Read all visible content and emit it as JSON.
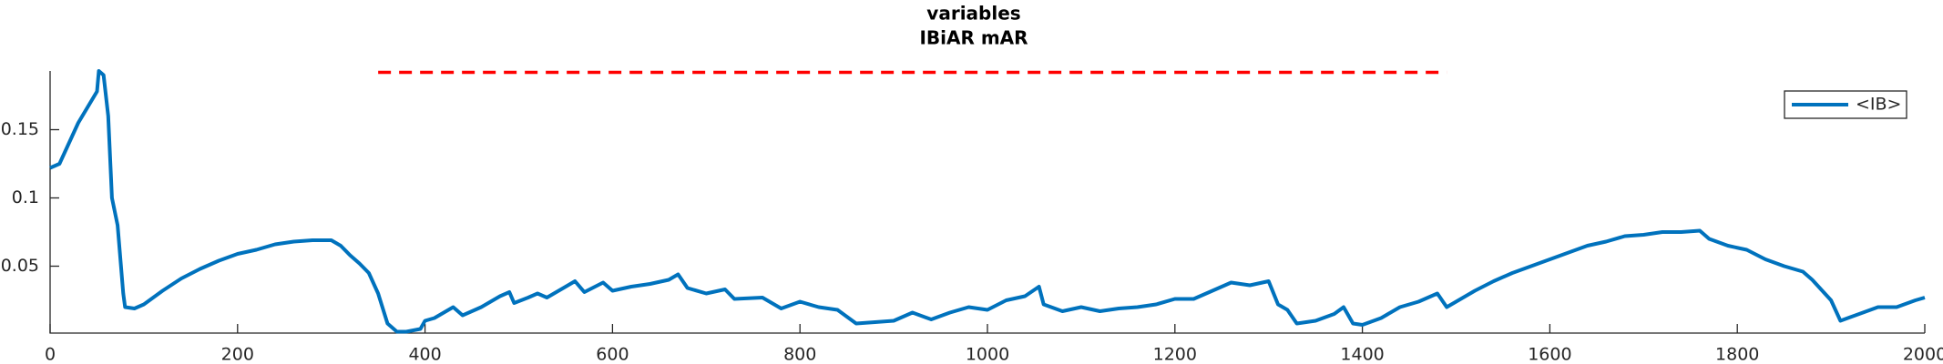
{
  "chart_data": {
    "type": "line",
    "title": "variables",
    "subtitle": "IBiAR mAR",
    "xlim": [
      0,
      2000
    ],
    "xticks": [
      0,
      200,
      400,
      600,
      800,
      1000,
      1200,
      1400,
      1600,
      1800,
      2000
    ],
    "ylim": [
      0.001,
      0.193
    ],
    "yticks": [
      0.05,
      0.1,
      0.15
    ],
    "legend": "northeast",
    "x": [
      0,
      10,
      30,
      50,
      52,
      57,
      62,
      66,
      72,
      78,
      80,
      90,
      100,
      120,
      140,
      160,
      180,
      200,
      220,
      240,
      260,
      280,
      300,
      310,
      320,
      330,
      340,
      350,
      360,
      370,
      380,
      395,
      400,
      410,
      420,
      430,
      440,
      460,
      480,
      490,
      495,
      510,
      520,
      530,
      550,
      560,
      570,
      590,
      600,
      620,
      640,
      660,
      670,
      680,
      700,
      720,
      730,
      760,
      780,
      800,
      820,
      840,
      860,
      880,
      900,
      920,
      940,
      960,
      980,
      1000,
      1020,
      1040,
      1055,
      1060,
      1080,
      1100,
      1120,
      1140,
      1160,
      1180,
      1200,
      1220,
      1240,
      1260,
      1280,
      1300,
      1310,
      1320,
      1330,
      1350,
      1370,
      1380,
      1390,
      1400,
      1420,
      1440,
      1460,
      1480,
      1490,
      1500,
      1520,
      1540,
      1560,
      1580,
      1600,
      1620,
      1640,
      1660,
      1680,
      1700,
      1720,
      1740,
      1760,
      1770,
      1790,
      1810,
      1830,
      1850,
      1870,
      1880,
      1900,
      1910,
      1930,
      1950,
      1970,
      1990,
      2000
    ],
    "series": [
      {
        "name": "<IB>",
        "color": "#0072bd",
        "values": [
          0.122,
          0.125,
          0.155,
          0.178,
          0.193,
          0.19,
          0.16,
          0.1,
          0.08,
          0.03,
          0.02,
          0.019,
          0.022,
          0.032,
          0.041,
          0.048,
          0.054,
          0.059,
          0.062,
          0.066,
          0.068,
          0.069,
          0.069,
          0.065,
          0.058,
          0.052,
          0.045,
          0.03,
          0.008,
          0.002,
          0.002,
          0.004,
          0.01,
          0.012,
          0.016,
          0.02,
          0.014,
          0.02,
          0.028,
          0.031,
          0.023,
          0.027,
          0.03,
          0.027,
          0.035,
          0.039,
          0.031,
          0.038,
          0.032,
          0.035,
          0.037,
          0.04,
          0.044,
          0.034,
          0.03,
          0.033,
          0.026,
          0.027,
          0.019,
          0.024,
          0.02,
          0.018,
          0.008,
          0.009,
          0.01,
          0.016,
          0.011,
          0.016,
          0.02,
          0.018,
          0.025,
          0.028,
          0.035,
          0.022,
          0.017,
          0.02,
          0.017,
          0.019,
          0.02,
          0.022,
          0.026,
          0.026,
          0.032,
          0.038,
          0.036,
          0.039,
          0.022,
          0.018,
          0.008,
          0.01,
          0.015,
          0.02,
          0.008,
          0.007,
          0.012,
          0.02,
          0.024,
          0.03,
          0.02,
          0.024,
          0.032,
          0.039,
          0.045,
          0.05,
          0.055,
          0.06,
          0.065,
          0.068,
          0.072,
          0.073,
          0.075,
          0.075,
          0.076,
          0.07,
          0.065,
          0.062,
          0.055,
          0.05,
          0.046,
          0.04,
          0.025,
          0.01,
          0.015,
          0.02,
          0.02,
          0.025,
          0.027
        ]
      }
    ],
    "reference_line": {
      "x": [
        350,
        1490
      ],
      "y": [
        0.192,
        0.192
      ],
      "color": "#ff0000"
    }
  }
}
